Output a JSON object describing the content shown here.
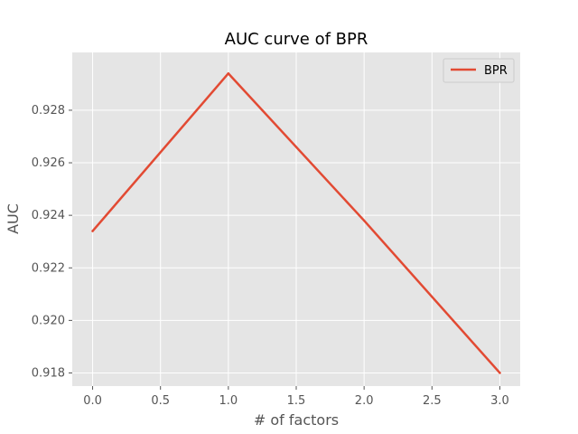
{
  "chart_data": {
    "type": "line",
    "title": "AUC curve of BPR",
    "xlabel": "# of factors",
    "ylabel": "AUC",
    "xlim": [
      -0.15,
      3.15
    ],
    "ylim": [
      0.9175,
      0.9302
    ],
    "x_ticks": [
      "0.0",
      "0.5",
      "1.0",
      "1.5",
      "2.0",
      "2.5",
      "3.0"
    ],
    "y_ticks": [
      "0.918",
      "0.920",
      "0.922",
      "0.924",
      "0.926",
      "0.928"
    ],
    "grid": true,
    "legend": {
      "position": "top-right",
      "entries": [
        "BPR"
      ]
    },
    "series": [
      {
        "name": "BPR",
        "color": "#E24A33",
        "x": [
          0,
          1,
          2,
          3
        ],
        "y": [
          0.9234,
          0.9294,
          0.9238,
          0.918
        ]
      }
    ]
  },
  "style": {
    "plot_background": "#E5E5E5",
    "grid_color": "#FFFFFF",
    "tick_color": "#555555"
  }
}
